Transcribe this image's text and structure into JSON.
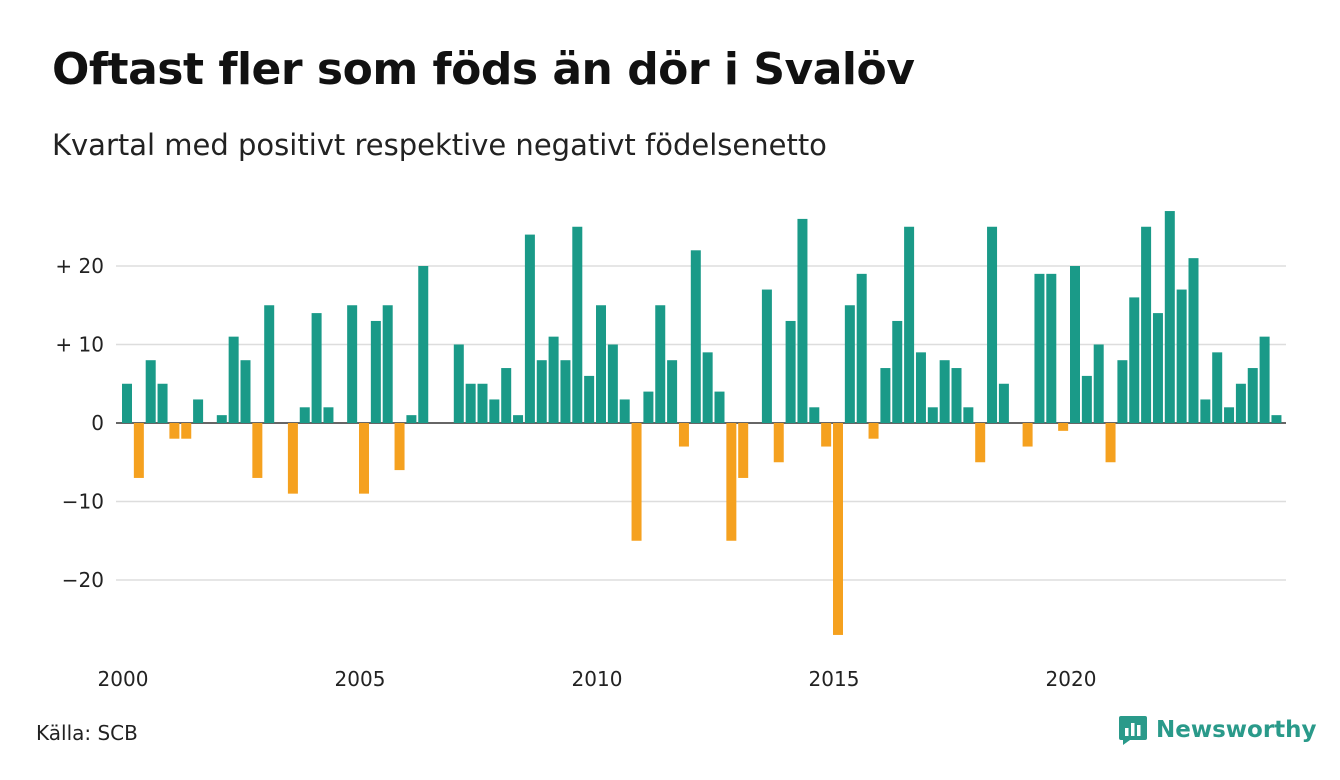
{
  "title": "Oftast fler som föds än dör i Svalöv",
  "subtitle": "Kvartal med positivt respektive negativt födelsenetto",
  "source": "Källa: SCB",
  "brand": {
    "name": "Newsworthy",
    "icon": "newsworthy-logo-icon",
    "color": "#2a9a8a"
  },
  "colors": {
    "positive": "#1a9a88",
    "negative": "#f5a11f",
    "grid": "#dddddd"
  },
  "chart_data": {
    "type": "bar",
    "title": "Oftast fler som föds än dör i Svalöv",
    "subtitle": "Kvartal med positivt respektive negativt födelsenetto",
    "xlabel": "",
    "ylabel": "",
    "ylim": [
      -29,
      29
    ],
    "xlim": [
      2000,
      2024.75
    ],
    "y_ticks": [
      {
        "value": 20,
        "label": "+ 20"
      },
      {
        "value": 10,
        "label": "+ 10"
      },
      {
        "value": 0,
        "label": "0"
      },
      {
        "value": -10,
        "label": "−10"
      },
      {
        "value": -20,
        "label": "−20"
      }
    ],
    "x_ticks": [
      {
        "value": 2000,
        "label": "2000"
      },
      {
        "value": 2005,
        "label": "2005"
      },
      {
        "value": 2010,
        "label": "2010"
      },
      {
        "value": 2015,
        "label": "2015"
      },
      {
        "value": 2020,
        "label": "2020"
      }
    ],
    "grid": true,
    "legend": "none",
    "series": [
      {
        "x": [
          "2000 Q1",
          "2000 Q2",
          "2000 Q3",
          "2000 Q4",
          "2001 Q1",
          "2001 Q2",
          "2001 Q3",
          "2001 Q4",
          "2002 Q1",
          "2002 Q2",
          "2002 Q3",
          "2002 Q4",
          "2003 Q1",
          "2003 Q2",
          "2003 Q3",
          "2003 Q4",
          "2004 Q1",
          "2004 Q2",
          "2004 Q3",
          "2004 Q4",
          "2005 Q1",
          "2005 Q2",
          "2005 Q3",
          "2005 Q4",
          "2006 Q1",
          "2006 Q2",
          "2006 Q3",
          "2006 Q4",
          "2007 Q1",
          "2007 Q2",
          "2007 Q3",
          "2007 Q4",
          "2008 Q1",
          "2008 Q2",
          "2008 Q3",
          "2008 Q4",
          "2009 Q1",
          "2009 Q2",
          "2009 Q3",
          "2009 Q4",
          "2010 Q1",
          "2010 Q2",
          "2010 Q3",
          "2010 Q4",
          "2011 Q1",
          "2011 Q2",
          "2011 Q3",
          "2011 Q4",
          "2012 Q1",
          "2012 Q2",
          "2012 Q3",
          "2012 Q4",
          "2013 Q1",
          "2013 Q2",
          "2013 Q3",
          "2013 Q4",
          "2014 Q1",
          "2014 Q2",
          "2014 Q3",
          "2014 Q4",
          "2015 Q1",
          "2015 Q2",
          "2015 Q3",
          "2015 Q4",
          "2016 Q1",
          "2016 Q2",
          "2016 Q3",
          "2016 Q4",
          "2017 Q1",
          "2017 Q2",
          "2017 Q3",
          "2017 Q4",
          "2018 Q1",
          "2018 Q2",
          "2018 Q3",
          "2018 Q4",
          "2019 Q1",
          "2019 Q2",
          "2019 Q3",
          "2019 Q4",
          "2020 Q1",
          "2020 Q2",
          "2020 Q3",
          "2020 Q4",
          "2021 Q1",
          "2021 Q2",
          "2021 Q3",
          "2021 Q4",
          "2022 Q1",
          "2022 Q2",
          "2022 Q3",
          "2022 Q4",
          "2023 Q1",
          "2023 Q2",
          "2023 Q3",
          "2023 Q4",
          "2024 Q1",
          "2024 Q2",
          "2024 Q3",
          "2024 Q4"
        ],
        "values": [
          5,
          -7,
          8,
          5,
          -2,
          -2,
          3,
          0,
          1,
          11,
          8,
          -7,
          15,
          0,
          -9,
          2,
          14,
          2,
          0,
          15,
          -9,
          13,
          15,
          -6,
          1,
          20,
          0,
          0,
          10,
          5,
          5,
          3,
          7,
          1,
          24,
          8,
          11,
          8,
          25,
          6,
          15,
          10,
          3,
          -15,
          4,
          15,
          8,
          -3,
          22,
          9,
          4,
          -15,
          -7,
          0,
          17,
          -5,
          13,
          26,
          2,
          -3,
          -27,
          15,
          19,
          -2,
          7,
          13,
          25,
          9,
          2,
          8,
          7,
          2,
          -5,
          25,
          5,
          0,
          -3,
          19,
          19,
          -1,
          20,
          6,
          10,
          -5,
          8,
          16,
          25,
          14,
          27,
          17,
          21,
          3,
          9,
          2,
          5,
          7,
          11,
          1,
          0,
          0
        ]
      }
    ]
  }
}
